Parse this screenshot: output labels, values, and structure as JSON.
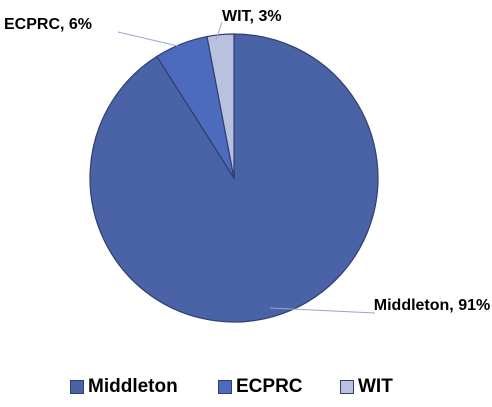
{
  "chart_data": {
    "type": "pie",
    "categories": [
      "Middleton",
      "ECPRC",
      "WIT"
    ],
    "values": [
      91,
      6,
      3
    ],
    "value_labels": [
      "Middleton, 91%",
      "ECPRC, 6%",
      "WIT, 3%"
    ],
    "colors": [
      "#4a62a6",
      "#4d6bbd",
      "#b9c1de"
    ],
    "legend": "bottom"
  }
}
